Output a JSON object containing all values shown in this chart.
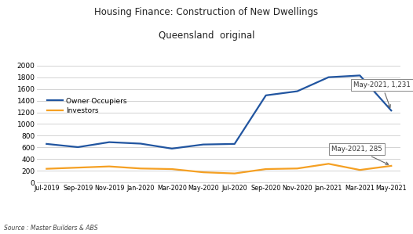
{
  "title_line1": "Housing Finance: Construction of New Dwellings",
  "title_line2": "Queensland  original",
  "source": "Source : Master Builders & ABS",
  "x_labels": [
    "Jul-2019",
    "Sep-2019",
    "Nov-2019",
    "Jan-2020",
    "Mar-2020",
    "May-2020",
    "Jul-2020",
    "Sep-2020",
    "Nov-2020",
    "Jan-2021",
    "Mar-2021",
    "May-2021"
  ],
  "owner_occupiers": [
    660,
    605,
    690,
    665,
    580,
    650,
    660,
    1490,
    1560,
    1800,
    1830,
    1231
  ],
  "investors": [
    235,
    255,
    275,
    240,
    230,
    175,
    155,
    230,
    240,
    320,
    215,
    285
  ],
  "owner_color": "#2155a0",
  "investor_color": "#f5a023",
  "ylim": [
    0,
    2000
  ],
  "yticks": [
    0,
    200,
    400,
    600,
    800,
    1000,
    1200,
    1400,
    1600,
    1800,
    2000
  ],
  "annotation_owner": "May-2021, 1,231",
  "annotation_investor": "May-2021, 285",
  "bg_color": "#ffffff",
  "grid_color": "#cccccc"
}
